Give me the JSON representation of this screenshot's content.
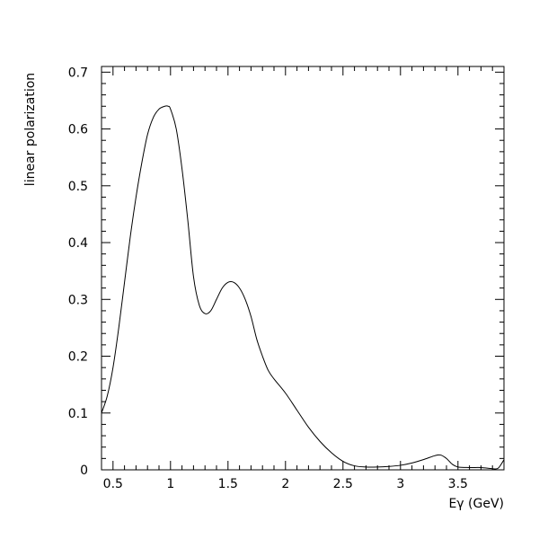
{
  "chart_data": {
    "type": "line",
    "title": "",
    "xlabel": "Eγ (GeV)",
    "ylabel": "linear polarization",
    "xlim": [
      0.4,
      3.9
    ],
    "ylim": [
      0,
      0.71
    ],
    "x_ticks": [
      0.5,
      1,
      1.5,
      2,
      2.5,
      3,
      3.5
    ],
    "x_tick_labels": [
      "0.5",
      "1",
      "1.5",
      "2",
      "2.5",
      "3",
      "3.5"
    ],
    "y_ticks": [
      0,
      0.1,
      0.2,
      0.3,
      0.4,
      0.5,
      0.6,
      0.7
    ],
    "y_tick_labels": [
      "0",
      "0.1",
      "0.2",
      "0.3",
      "0.4",
      "0.5",
      "0.6",
      "0.7"
    ],
    "grid": false,
    "legend": "none",
    "colors": {
      "line": "#000000",
      "frame": "#000000"
    },
    "series": [
      {
        "x": [
          0.4,
          0.45,
          0.5,
          0.55,
          0.6,
          0.65,
          0.7,
          0.75,
          0.8,
          0.85,
          0.9,
          0.95,
          0.98,
          1.0,
          1.05,
          1.1,
          1.15,
          1.2,
          1.25,
          1.3,
          1.35,
          1.4,
          1.45,
          1.5,
          1.55,
          1.6,
          1.65,
          1.7,
          1.75,
          1.8,
          1.85,
          1.9,
          2.0,
          2.1,
          2.2,
          2.3,
          2.4,
          2.5,
          2.6,
          2.7,
          2.8,
          2.9,
          3.0,
          3.1,
          3.2,
          3.3,
          3.35,
          3.4,
          3.45,
          3.5,
          3.6,
          3.7,
          3.8,
          3.85,
          3.9
        ],
        "y": [
          0.1,
          0.13,
          0.18,
          0.25,
          0.33,
          0.41,
          0.48,
          0.54,
          0.59,
          0.62,
          0.635,
          0.64,
          0.64,
          0.635,
          0.6,
          0.53,
          0.44,
          0.34,
          0.29,
          0.275,
          0.28,
          0.3,
          0.32,
          0.33,
          0.33,
          0.32,
          0.3,
          0.27,
          0.23,
          0.2,
          0.175,
          0.16,
          0.135,
          0.105,
          0.075,
          0.05,
          0.03,
          0.015,
          0.007,
          0.005,
          0.005,
          0.006,
          0.008,
          0.012,
          0.018,
          0.025,
          0.026,
          0.02,
          0.01,
          0.005,
          0.004,
          0.004,
          0.002,
          0.003,
          0.018
        ]
      }
    ]
  }
}
